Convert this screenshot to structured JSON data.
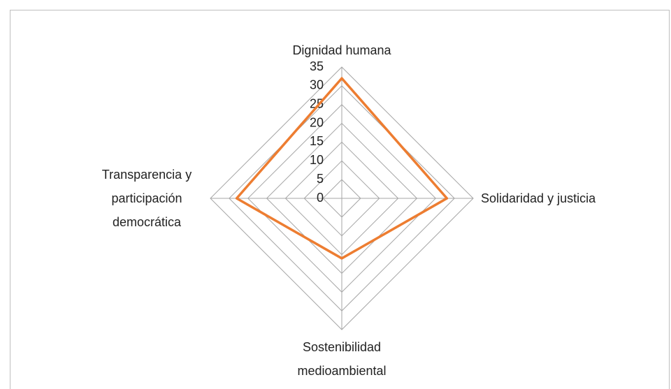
{
  "chart_data": {
    "type": "radar",
    "categories": [
      "Dignidad humana",
      "Solidaridad y justicia",
      "Sostenibilidad medioambiental",
      "Transparencia y participación democrática"
    ],
    "series": [
      {
        "name": null,
        "color": "#ed7d31",
        "values": [
          32,
          28,
          16,
          28
        ]
      }
    ],
    "ylim": [
      0,
      35
    ],
    "yticks": [
      0,
      5,
      10,
      15,
      20,
      25,
      30,
      35
    ],
    "grid": true
  }
}
